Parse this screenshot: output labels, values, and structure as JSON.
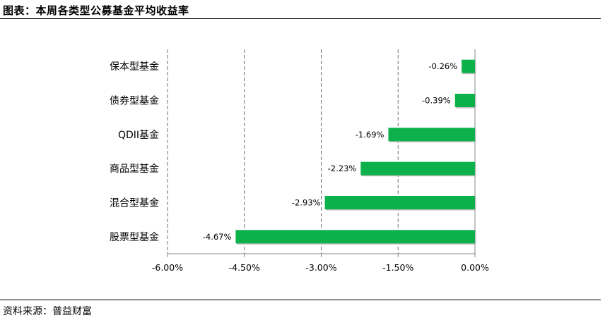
{
  "figure": {
    "title": "图表：本周各类型公募基金平均收益率",
    "source": "资料来源：普益财富"
  },
  "chart_data": {
    "type": "bar",
    "orientation": "horizontal",
    "categories": [
      "保本型基金",
      "债券型基金",
      "QDII基金",
      "商品型基金",
      "混合型基金",
      "股票型基金"
    ],
    "values": [
      -0.26,
      -0.39,
      -1.69,
      -2.23,
      -2.93,
      -4.67
    ],
    "value_labels": [
      "-0.26%",
      "-0.39%",
      "-1.69%",
      "-2.23%",
      "-2.93%",
      "-4.67%"
    ],
    "x_ticks": [
      -6.0,
      -4.5,
      -3.0,
      -1.5,
      0.0
    ],
    "x_tick_labels": [
      "-6.00%",
      "-4.50%",
      "-3.00%",
      "-1.50%",
      "0.00%"
    ],
    "xlim": [
      -6.0,
      0.0
    ],
    "grid": "vertical dashed",
    "bar_color": "#0db14b",
    "title": "",
    "xlabel": "",
    "ylabel": ""
  }
}
